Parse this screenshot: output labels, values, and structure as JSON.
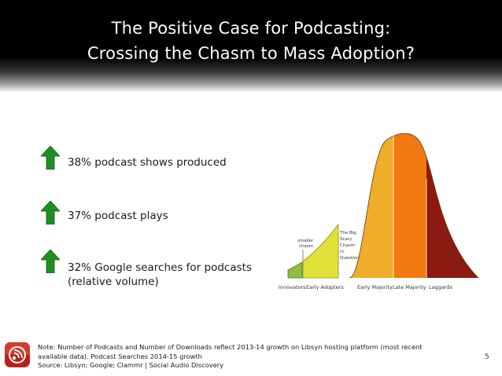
{
  "slide": {
    "title_lines": [
      "The Positive Case for Podcasting:",
      "Crossing the Chasm to Mass Adoption?"
    ]
  },
  "bullets": [
    {
      "icon": "up-arrow-icon",
      "lines": [
        "38% podcast shows produced"
      ]
    },
    {
      "icon": "up-arrow-icon",
      "lines": [
        "37% podcast plays"
      ]
    },
    {
      "icon": "up-arrow-icon",
      "lines": [
        "32% Google searches for podcasts",
        "(relative volume)"
      ]
    }
  ],
  "adoption_chart": {
    "segments": [
      {
        "label": "Innovators",
        "color": "#8fbf3f"
      },
      {
        "label": "Early Adopters",
        "color": "#e0e23a"
      },
      {
        "label": "Early Majority",
        "color": "#f0ad2a"
      },
      {
        "label": "Late Majority",
        "color": "#f07a10"
      },
      {
        "label": "Laggards",
        "color": "#8b1a10"
      }
    ],
    "annotations": {
      "smaller_chasm": [
        "smaller",
        "chasm"
      ],
      "big_chasm": [
        "The Big",
        "Scary",
        "Chasm",
        "in",
        "Question"
      ]
    }
  },
  "footer": {
    "icon": "rss-podcast-icon",
    "note_lines": [
      "Note: Number of Podcasts and Number of Downloads reflect  2013-14 growth on Libsyn hosting platform (most recent",
      "available data). Podcast Searches 2014-15 growth",
      "Source: Libsyn; Google; Clammr | Social Audio Discovery"
    ],
    "page_number": "5"
  },
  "colors": {
    "arrow_green": "#1f8f1f",
    "title_text": "#ffffff",
    "footer_icon_bg": "#b8221c"
  }
}
